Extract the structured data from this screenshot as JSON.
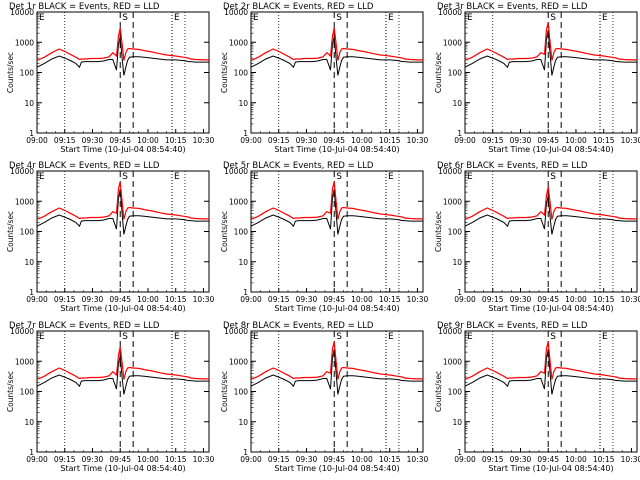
{
  "chart_data": {
    "type": "line",
    "log_y": true,
    "ylim": [
      1,
      10000
    ],
    "y_ticks": [
      "1",
      "10",
      "100",
      "1000",
      "10000"
    ],
    "ylabel": "Counts/sec",
    "xlabel": "Start Time (10-Jul-04 08:54:40)",
    "x_ticks": [
      "09:00",
      "09:15",
      "09:30",
      "09:45",
      "10:00",
      "10:15",
      "10:30"
    ],
    "x_tick_minutes": [
      0,
      15,
      30,
      45,
      60,
      75,
      90
    ],
    "xlim_minutes": [
      0,
      93
    ],
    "grid": false,
    "series_colors": {
      "events": "#000000",
      "lld": "#ff0000"
    },
    "time_axis": [
      0,
      4,
      8,
      12,
      15,
      18,
      21,
      23,
      24,
      26,
      29,
      33,
      36,
      39,
      41,
      43,
      44,
      45,
      46,
      47,
      48,
      49,
      50,
      52,
      55,
      58,
      62,
      66,
      70,
      75,
      79,
      82,
      83,
      86,
      90,
      93
    ],
    "panels": [
      {
        "title": "Det 1r BLACK = Events, RED = LLD",
        "events": [
          150,
          200,
          280,
          350,
          300,
          250,
          200,
          150,
          220,
          230,
          230,
          230,
          240,
          270,
          270,
          120,
          800,
          1500,
          300,
          80,
          150,
          250,
          320,
          330,
          330,
          320,
          300,
          280,
          260,
          260,
          250,
          230,
          230,
          220,
          220,
          220
        ],
        "lld": [
          250,
          320,
          450,
          600,
          500,
          400,
          320,
          270,
          280,
          280,
          290,
          290,
          300,
          330,
          450,
          350,
          1500,
          3000,
          900,
          250,
          450,
          600,
          620,
          600,
          580,
          530,
          480,
          420,
          380,
          350,
          320,
          300,
          280,
          270,
          260,
          260
        ]
      },
      {
        "title": "Det 2r BLACK = Events, RED = LLD",
        "events": [
          150,
          200,
          280,
          350,
          300,
          250,
          200,
          150,
          220,
          230,
          230,
          230,
          240,
          270,
          270,
          120,
          800,
          1500,
          300,
          80,
          150,
          250,
          320,
          330,
          330,
          320,
          300,
          280,
          260,
          260,
          250,
          230,
          230,
          220,
          220,
          220
        ],
        "lld": [
          250,
          320,
          450,
          600,
          500,
          400,
          320,
          270,
          280,
          280,
          290,
          290,
          300,
          330,
          450,
          350,
          1500,
          3000,
          900,
          250,
          450,
          600,
          620,
          600,
          580,
          530,
          480,
          420,
          380,
          350,
          320,
          300,
          280,
          270,
          260,
          260
        ]
      },
      {
        "title": "Det 3r BLACK = Events, RED = LLD",
        "events": [
          150,
          200,
          280,
          350,
          300,
          250,
          200,
          150,
          220,
          230,
          230,
          230,
          240,
          270,
          270,
          120,
          1200,
          2500,
          400,
          80,
          150,
          250,
          320,
          330,
          330,
          320,
          300,
          280,
          260,
          260,
          250,
          230,
          230,
          220,
          220,
          220
        ],
        "lld": [
          250,
          320,
          450,
          600,
          500,
          400,
          320,
          270,
          280,
          280,
          290,
          290,
          300,
          330,
          450,
          400,
          2500,
          4500,
          1000,
          250,
          450,
          600,
          620,
          600,
          580,
          530,
          480,
          420,
          380,
          350,
          320,
          300,
          280,
          270,
          260,
          260
        ]
      },
      {
        "title": "Det 4r BLACK = Events, RED = LLD",
        "events": [
          150,
          200,
          280,
          350,
          300,
          250,
          200,
          150,
          220,
          230,
          230,
          230,
          240,
          270,
          270,
          120,
          1200,
          2500,
          400,
          80,
          150,
          250,
          320,
          330,
          330,
          320,
          300,
          280,
          260,
          260,
          250,
          230,
          230,
          220,
          220,
          220
        ],
        "lld": [
          250,
          320,
          450,
          600,
          500,
          400,
          320,
          270,
          280,
          280,
          290,
          290,
          300,
          330,
          450,
          400,
          2500,
          4500,
          1000,
          250,
          450,
          600,
          620,
          600,
          580,
          530,
          480,
          420,
          380,
          350,
          320,
          300,
          280,
          270,
          260,
          260
        ]
      },
      {
        "title": "Det 5r BLACK = Events, RED = LLD",
        "events": [
          150,
          200,
          280,
          350,
          300,
          250,
          200,
          150,
          220,
          230,
          230,
          230,
          240,
          270,
          270,
          120,
          1200,
          2500,
          400,
          80,
          150,
          250,
          320,
          330,
          330,
          320,
          300,
          280,
          260,
          260,
          250,
          230,
          230,
          220,
          220,
          220
        ],
        "lld": [
          250,
          320,
          450,
          600,
          500,
          400,
          320,
          270,
          280,
          280,
          290,
          290,
          300,
          330,
          450,
          400,
          2500,
          4500,
          1000,
          250,
          450,
          600,
          620,
          600,
          580,
          530,
          480,
          420,
          380,
          350,
          320,
          300,
          280,
          270,
          260,
          260
        ]
      },
      {
        "title": "Det 6r BLACK = Events, RED = LLD",
        "events": [
          150,
          200,
          280,
          350,
          300,
          250,
          200,
          150,
          220,
          230,
          230,
          230,
          240,
          270,
          270,
          120,
          800,
          1500,
          300,
          80,
          150,
          250,
          320,
          330,
          330,
          320,
          300,
          280,
          260,
          260,
          250,
          230,
          230,
          220,
          220,
          220
        ],
        "lld": [
          250,
          320,
          450,
          600,
          500,
          400,
          320,
          270,
          280,
          280,
          290,
          290,
          300,
          330,
          450,
          350,
          1500,
          3000,
          900,
          250,
          450,
          600,
          620,
          600,
          580,
          530,
          480,
          420,
          380,
          350,
          320,
          300,
          280,
          270,
          260,
          260
        ]
      },
      {
        "title": "Det 7r BLACK = Events, RED = LLD",
        "events": [
          150,
          200,
          280,
          350,
          300,
          250,
          200,
          150,
          220,
          230,
          230,
          230,
          240,
          270,
          270,
          120,
          800,
          1500,
          300,
          80,
          150,
          250,
          320,
          330,
          330,
          320,
          300,
          280,
          260,
          260,
          250,
          230,
          230,
          220,
          220,
          220
        ],
        "lld": [
          250,
          320,
          450,
          600,
          500,
          400,
          320,
          270,
          280,
          280,
          290,
          290,
          300,
          330,
          450,
          350,
          1500,
          3000,
          900,
          250,
          450,
          600,
          620,
          600,
          580,
          530,
          480,
          420,
          380,
          350,
          320,
          300,
          280,
          270,
          260,
          260
        ]
      },
      {
        "title": "Det 8r BLACK = Events, RED = LLD",
        "events": [
          150,
          200,
          280,
          350,
          300,
          250,
          200,
          150,
          220,
          230,
          230,
          230,
          240,
          270,
          270,
          120,
          1200,
          2500,
          400,
          80,
          150,
          250,
          320,
          330,
          330,
          320,
          300,
          280,
          260,
          260,
          250,
          230,
          230,
          220,
          220,
          220
        ],
        "lld": [
          250,
          320,
          450,
          600,
          500,
          400,
          320,
          270,
          280,
          280,
          290,
          290,
          300,
          330,
          450,
          400,
          2500,
          4500,
          1000,
          250,
          450,
          600,
          620,
          600,
          580,
          530,
          480,
          420,
          380,
          350,
          320,
          300,
          280,
          270,
          260,
          260
        ]
      },
      {
        "title": "Det 9r BLACK = Events, RED = LLD",
        "events": [
          150,
          200,
          280,
          350,
          300,
          250,
          200,
          150,
          220,
          230,
          230,
          230,
          240,
          270,
          270,
          120,
          1200,
          2500,
          400,
          80,
          150,
          250,
          320,
          330,
          330,
          320,
          300,
          280,
          260,
          260,
          250,
          230,
          230,
          220,
          220,
          220
        ],
        "lld": [
          250,
          320,
          450,
          600,
          500,
          400,
          320,
          270,
          280,
          280,
          290,
          290,
          300,
          330,
          450,
          400,
          2500,
          4500,
          1000,
          250,
          450,
          600,
          620,
          600,
          580,
          530,
          480,
          420,
          380,
          350,
          320,
          300,
          280,
          270,
          260,
          260
        ]
      }
    ],
    "markers": [
      {
        "label": "S",
        "minute": 45,
        "style": "dashed"
      },
      {
        "label": "",
        "minute": 52,
        "style": "dashed"
      },
      {
        "label": "E",
        "minute": 73,
        "style": "dotted"
      }
    ],
    "edge_marker": {
      "label": "E"
    },
    "vlines_dotted_minutes": [
      15,
      73,
      80
    ]
  }
}
